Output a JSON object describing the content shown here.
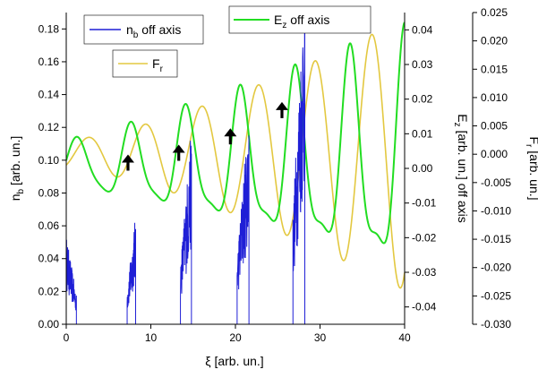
{
  "chart_data": {
    "type": "line",
    "xlabel": "ξ [arb. un.]",
    "xlim": [
      0,
      40
    ],
    "xticks": [
      0,
      10,
      20,
      30,
      40
    ],
    "axes": {
      "left": {
        "label_main": "n",
        "label_sub": "b",
        "label_rest": " [arb. un.]",
        "lim": [
          0,
          0.19
        ],
        "ticks": [
          0.0,
          0.02,
          0.04,
          0.06,
          0.08,
          0.1,
          0.12,
          0.14,
          0.16,
          0.18
        ],
        "tick_labels": [
          "0.00",
          "0.02",
          "0.04",
          "0.06",
          "0.08",
          "0.10",
          "0.12",
          "0.14",
          "0.16",
          "0.18"
        ]
      },
      "right1": {
        "label_main": "E",
        "label_sub": "z",
        "label_rest": " [arb. un.] off axis",
        "lim": [
          -0.045,
          0.045
        ],
        "ticks": [
          0.04,
          0.03,
          0.02,
          0.01,
          0.0,
          -0.01,
          -0.02,
          -0.03,
          -0.04
        ],
        "tick_labels": [
          "0.04",
          "0.03",
          "0.02",
          "0.01",
          "0.00",
          "-0.01",
          "-0.02",
          "-0.03",
          "-0.04"
        ]
      },
      "right2": {
        "label_main": "F",
        "label_sub": "r",
        "label_rest": " [arb. un.]",
        "lim": [
          -0.03,
          0.025
        ],
        "ticks": [
          0.025,
          0.02,
          0.015,
          0.01,
          0.005,
          0.0,
          -0.005,
          -0.01,
          -0.015,
          -0.02,
          -0.025,
          -0.03
        ],
        "tick_labels": [
          "0.025",
          "0.020",
          "0.015",
          "0.010",
          "0.005",
          "0.000",
          "-0.005",
          "-0.010",
          "-0.015",
          "-0.020",
          "-0.025",
          "-0.030"
        ]
      }
    },
    "series": [
      {
        "name_main": "n",
        "name_sub": "b",
        "name_rest": " off axis",
        "color": "#1f1fd6",
        "axis": "left",
        "bunches": [
          {
            "start": 0.0,
            "end": 1.2,
            "peak": 0.05,
            "rise": "fall"
          },
          {
            "start": 7.2,
            "end": 8.2,
            "peak": 0.058,
            "rise": "up"
          },
          {
            "start": 13.5,
            "end": 14.8,
            "peak": 0.104,
            "rise": "up"
          },
          {
            "start": 20.2,
            "end": 21.6,
            "peak": 0.115,
            "rise": "up"
          },
          {
            "start": 26.8,
            "end": 28.2,
            "peak": 0.19,
            "rise": "up"
          }
        ]
      },
      {
        "name_main": "E",
        "name_sub": "z",
        "name_rest": " off axis",
        "color": "#22dd22",
        "axis": "right1"
      },
      {
        "name_main": "F",
        "name_sub": "r",
        "name_rest": "",
        "color": "#e3c840",
        "axis": "right2"
      }
    ],
    "arrows_x": [
      7.3,
      13.3,
      19.4,
      25.5
    ],
    "arrows_y_left": [
      0.098,
      0.104,
      0.114,
      0.13
    ],
    "colors": {
      "axis": "#000000",
      "arrow": "#000000"
    }
  }
}
